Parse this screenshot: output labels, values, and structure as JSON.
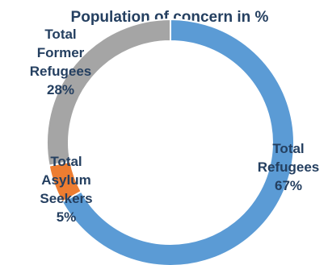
{
  "chart_data": {
    "type": "pie",
    "variant": "doughnut",
    "title": "Population of concern  in %",
    "slices": [
      {
        "name": "Total Refugees",
        "label_lines": [
          "Total",
          "Refugees",
          "67%"
        ],
        "value": 67,
        "color": "#5b9bd5"
      },
      {
        "name": "Total Asylum Seekers",
        "label_lines": [
          "Total",
          "Asylum",
          "Seekers",
          "5%"
        ],
        "value": 5,
        "color": "#ed7d31"
      },
      {
        "name": "Total Former Refugees",
        "label_lines": [
          "Total",
          "Former",
          "Refugees",
          "28%"
        ],
        "value": 28,
        "color": "#a5a5a5"
      }
    ],
    "legend": "none"
  }
}
